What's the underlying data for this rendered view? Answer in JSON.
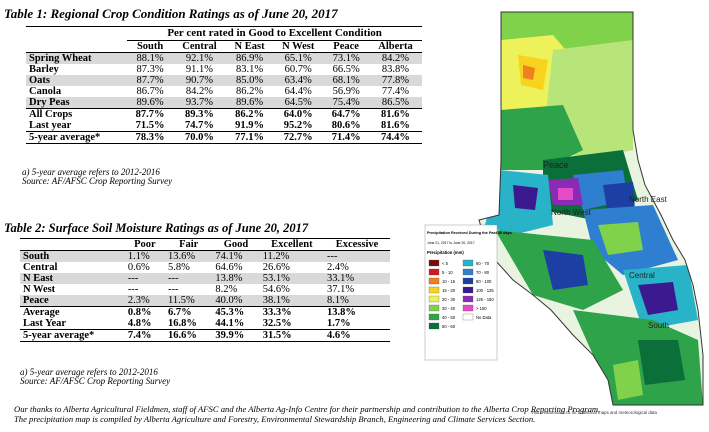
{
  "table1": {
    "title": "Table 1: Regional Crop Condition Ratings as of June 20, 2017",
    "group_header": "Per cent rated in Good to Excellent Condition",
    "columns": [
      "South",
      "Central",
      "N East",
      "N West",
      "Peace",
      "Alberta"
    ],
    "rows": [
      {
        "label": "Spring Wheat",
        "values": [
          "88.1%",
          "92.1%",
          "86.9%",
          "65.1%",
          "73.1%",
          "84.2%"
        ]
      },
      {
        "label": "Barley",
        "values": [
          "87.3%",
          "91.1%",
          "83.1%",
          "60.7%",
          "66.5%",
          "83.8%"
        ]
      },
      {
        "label": "Oats",
        "values": [
          "87.7%",
          "90.7%",
          "85.0%",
          "63.4%",
          "68.1%",
          "77.8%"
        ]
      },
      {
        "label": "Canola",
        "values": [
          "86.7%",
          "84.2%",
          "86.2%",
          "64.4%",
          "56.9%",
          "77.4%"
        ]
      },
      {
        "label": "Dry Peas",
        "values": [
          "89.6%",
          "93.7%",
          "89.6%",
          "64.5%",
          "75.4%",
          "86.5%"
        ]
      },
      {
        "label": "All Crops",
        "values": [
          "87.7%",
          "89.3%",
          "86.2%",
          "64.0%",
          "64.7%",
          "81.6%"
        ]
      },
      {
        "label": "Last year",
        "values": [
          "71.5%",
          "74.7%",
          "91.9%",
          "95.2%",
          "80.6%",
          "81.6%"
        ]
      },
      {
        "label": "5-year average*",
        "values": [
          "78.3%",
          "70.0%",
          "77.1%",
          "72.7%",
          "71.4%",
          "74.4%"
        ]
      }
    ],
    "note1": "a) 5-year average refers to 2012-2016",
    "note2": "Source: AF/AFSC Crop Reporting Survey"
  },
  "table2": {
    "title": "Table 2: Surface Soil Moisture Ratings as of June 20, 2017",
    "columns": [
      "Poor",
      "Fair",
      "Good",
      "Excellent",
      "Excessive"
    ],
    "rows": [
      {
        "label": "South",
        "values": [
          "1.1%",
          "13.6%",
          "74.1%",
          "11.2%",
          "---"
        ]
      },
      {
        "label": "Central",
        "values": [
          "0.6%",
          "5.8%",
          "64.6%",
          "26.6%",
          "2.4%"
        ]
      },
      {
        "label": "N East",
        "values": [
          "---",
          "---",
          "13.8%",
          "53.1%",
          "33.1%"
        ]
      },
      {
        "label": "N West",
        "values": [
          "---",
          "---",
          "8.2%",
          "54.6%",
          "37.1%"
        ]
      },
      {
        "label": "Peace",
        "values": [
          "2.3%",
          "11.5%",
          "40.0%",
          "38.1%",
          "8.1%"
        ]
      },
      {
        "label": "Average",
        "values": [
          "0.8%",
          "6.7%",
          "45.3%",
          "33.3%",
          "13.8%"
        ]
      },
      {
        "label": "Last Year",
        "values": [
          "4.8%",
          "16.8%",
          "44.1%",
          "32.5%",
          "1.7%"
        ]
      },
      {
        "label": "5-year average*",
        "values": [
          "7.4%",
          "16.6%",
          "39.9%",
          "31.5%",
          "4.6%"
        ]
      }
    ],
    "note1": "a) 5-year average refers to 2012-2016",
    "note2": "Source: AF/AFSC Crop Reporting Survey"
  },
  "thanks": {
    "line1": "Our thanks to Alberta Agricultural Fieldmen, staff of AFSC and the Alberta Ag-Info Centre for their partnership and contribution to the Alberta Crop Reporting Program.",
    "line2": "The precipitation map is compiled by Alberta Agriculture and Forestry, Environmental Stewardship Branch, Engineering and Climate Services Section."
  },
  "map": {
    "region_labels": [
      "Peace",
      "North West",
      "North East",
      "Central",
      "South"
    ],
    "legend_title": "Precipitation Received During the Past 30 days",
    "legend_dates": "June 21, 2017 to June 20, 2017",
    "legend_unit": "Precipitation (mm)",
    "legend_items": [
      {
        "label": "< 5",
        "color": "#7a0a0a"
      },
      {
        "label": "5 - 10",
        "color": "#d6181f"
      },
      {
        "label": "10 - 15",
        "color": "#f07f1d"
      },
      {
        "label": "15 - 20",
        "color": "#f7d31d"
      },
      {
        "label": "20 - 30",
        "color": "#eef25a"
      },
      {
        "label": "30 - 40",
        "color": "#7fd24a"
      },
      {
        "label": "40 - 50",
        "color": "#2fa34a"
      },
      {
        "label": "50 - 60",
        "color": "#0b6f3a"
      },
      {
        "label": "60 - 70",
        "color": "#28b3c8"
      },
      {
        "label": "70 - 80",
        "color": "#2f7fd0"
      },
      {
        "label": "80 - 100",
        "color": "#1c3fa3"
      },
      {
        "label": "100 - 125",
        "color": "#3a1a8e"
      },
      {
        "label": "125 - 150",
        "color": "#8b2bb5"
      },
      {
        "label": "> 150",
        "color": "#e44bc8"
      },
      {
        "label": "No Data",
        "color": "#ffffff"
      }
    ],
    "footer": "Visit weatherdata.ca for additional maps and meteorological data"
  }
}
